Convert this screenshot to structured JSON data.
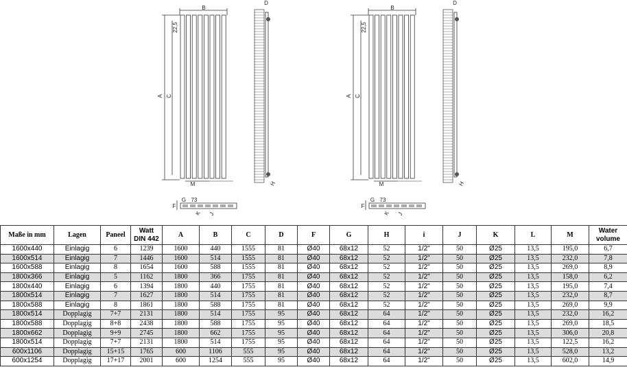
{
  "drawings": [
    {
      "labels": [
        "B",
        "A",
        "C",
        "D",
        "22,5",
        "M",
        "H",
        "F",
        "G",
        "73",
        "K",
        "J"
      ]
    },
    {
      "labels": [
        "B",
        "A",
        "C",
        "D",
        "22,5",
        "M",
        "H",
        "F",
        "G",
        "73",
        "K",
        "J"
      ]
    }
  ],
  "table": {
    "header": [
      "Maße in mm",
      "Lagen",
      "Paneel",
      [
        "Watt",
        "DIN 442"
      ],
      "A",
      "B",
      "C",
      "D",
      "F",
      "G",
      "H",
      "i",
      "J",
      "K",
      "L",
      "M",
      [
        "Water",
        "volume"
      ]
    ],
    "rows": [
      [
        "1600x440",
        "Einlagig",
        "6",
        "1239",
        "1600",
        "440",
        "1555",
        "81",
        "Ø40",
        "68x12",
        "52",
        "1/2\"",
        "50",
        "Ø25",
        "13,5",
        "195,0",
        "6,7"
      ],
      [
        "1600x514",
        "Einlagig",
        "7",
        "1446",
        "1600",
        "514",
        "1555",
        "81",
        "Ø40",
        "68x12",
        "52",
        "1/2\"",
        "50",
        "Ø25",
        "13,5",
        "232,0",
        "7,8"
      ],
      [
        "1600x588",
        "Einlagig",
        "8",
        "1654",
        "1600",
        "588",
        "1555",
        "81",
        "Ø40",
        "68x12",
        "52",
        "1/2\"",
        "50",
        "Ø25",
        "13,5",
        "269,0",
        "8,9"
      ],
      [
        "1800x366",
        "Einlagig",
        "5",
        "1162",
        "1800",
        "366",
        "1755",
        "81",
        "Ø40",
        "68x12",
        "52",
        "1/2\"",
        "50",
        "Ø25",
        "13,5",
        "158,0",
        "6,2"
      ],
      [
        "1800x440",
        "Einlagig",
        "6",
        "1394",
        "1800",
        "440",
        "1755",
        "81",
        "Ø40",
        "68x12",
        "52",
        "1/2\"",
        "50",
        "Ø25",
        "13,5",
        "195,0",
        "7,4"
      ],
      [
        "1800x514",
        "Einlagig",
        "7",
        "1627",
        "1800",
        "514",
        "1755",
        "81",
        "Ø40",
        "68x12",
        "52",
        "1/2\"",
        "50",
        "Ø25",
        "13,5",
        "232,0",
        "8,7"
      ],
      [
        "1800x588",
        "Einlagig",
        "8",
        "1861",
        "1800",
        "588",
        "1755",
        "81",
        "Ø40",
        "68x12",
        "52",
        "1/2\"",
        "50",
        "Ø25",
        "13,5",
        "269,0",
        "9,9"
      ],
      [
        "1800x514",
        "Dopplagig",
        "7+7",
        "2131",
        "1800",
        "514",
        "1755",
        "95",
        "Ø40",
        "68x12",
        "64",
        "1/2\"",
        "50",
        "Ø25",
        "13,5",
        "232,0",
        "16,2"
      ],
      [
        "1800x588",
        "Dopplagig",
        "8+8",
        "2438",
        "1800",
        "588",
        "1755",
        "95",
        "Ø40",
        "68x12",
        "64",
        "1/2\"",
        "50",
        "Ø25",
        "13,5",
        "269,0",
        "18,5"
      ],
      [
        "1800x662",
        "Dopplagig",
        "9+9",
        "2745",
        "1800",
        "662",
        "1755",
        "95",
        "Ø40",
        "68x12",
        "64",
        "1/2\"",
        "50",
        "Ø25",
        "13,5",
        "306,0",
        "20,8"
      ],
      [
        "1800x514",
        "Dopplagig",
        "7+7",
        "2131",
        "1800",
        "514",
        "1755",
        "95",
        "Ø40",
        "68x12",
        "64",
        "1/2\"",
        "50",
        "Ø25",
        "13,5",
        "122,5",
        "16,2"
      ],
      [
        "600x1106",
        "Dopplagig",
        "15+15",
        "1765",
        "600",
        "1106",
        "555",
        "95",
        "Ø40",
        "68x12",
        "64",
        "1/2\"",
        "50",
        "Ø25",
        "13,5",
        "528,0",
        "13,2"
      ],
      [
        "600x1254",
        "Dopplagig",
        "17+17",
        "2001",
        "600",
        "1254",
        "555",
        "95",
        "Ø40",
        "68x12",
        "64",
        "1/2\"",
        "50",
        "Ø25",
        "13,5",
        "602,0",
        "14,9"
      ]
    ]
  }
}
